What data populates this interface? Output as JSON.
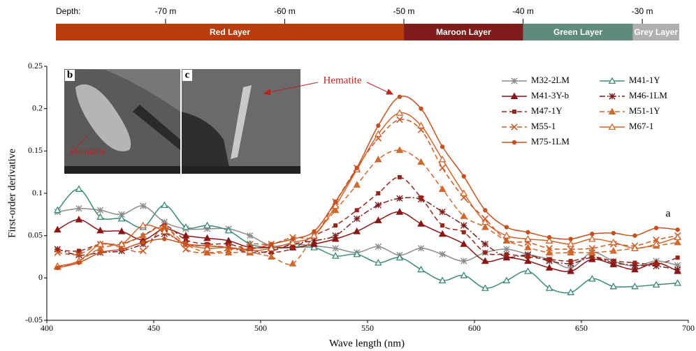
{
  "depth_scale": {
    "label": "Depth:",
    "xlim": [
      -79.2,
      -26.9
    ],
    "ticks": [
      {
        "value": -70,
        "label": "-70 m"
      },
      {
        "value": -60,
        "label": "-60 m"
      },
      {
        "value": -50,
        "label": "-50 m"
      },
      {
        "value": -40,
        "label": "-40 m"
      },
      {
        "value": -30,
        "label": "-30 m"
      }
    ],
    "layers": [
      {
        "name": "Red Layer",
        "from": -79.2,
        "to": -50,
        "color": "#b83c0c"
      },
      {
        "name": "Maroon Layer",
        "from": -50,
        "to": -40,
        "color": "#7f1d1d"
      },
      {
        "name": "Green Layer",
        "from": -40,
        "to": -30.8,
        "color": "#5f8a7e"
      },
      {
        "name": "Grey Layer",
        "from": -30.8,
        "to": -26.9,
        "color": "#b0b0b0"
      }
    ]
  },
  "chart_data": {
    "type": "line",
    "xlabel": "Wave length (nm)",
    "ylabel": "First-order derivative",
    "x": [
      405,
      415,
      425,
      435,
      445,
      455,
      465,
      475,
      485,
      495,
      505,
      515,
      525,
      535,
      545,
      555,
      565,
      575,
      585,
      595,
      605,
      615,
      625,
      635,
      645,
      655,
      665,
      675,
      685,
      695
    ],
    "xlim": [
      400,
      700
    ],
    "xticks": [
      400,
      450,
      500,
      550,
      600,
      650,
      700
    ],
    "ylim": [
      -0.05,
      0.25
    ],
    "yticks": [
      -0.05,
      0,
      0.05,
      0.1,
      0.15,
      0.2,
      0.25
    ],
    "series": [
      {
        "name": "M32-2LM",
        "color": "#8c8c8c",
        "dash": "solid",
        "marker": "star",
        "values": [
          0.078,
          0.082,
          0.08,
          0.075,
          0.085,
          0.066,
          0.058,
          0.058,
          0.058,
          0.05,
          0.038,
          0.04,
          0.038,
          0.035,
          0.03,
          0.037,
          0.027,
          0.035,
          0.028,
          0.02,
          0.03,
          0.034,
          0.028,
          0.022,
          0.012,
          0.03,
          0.02,
          0.014,
          0.02,
          0.015
        ]
      },
      {
        "name": "M41-1Y",
        "color": "#3a8a78",
        "dash": "solid",
        "marker": "triangle-open",
        "values": [
          0.08,
          0.105,
          0.072,
          0.07,
          0.06,
          0.086,
          0.06,
          0.062,
          0.056,
          0.04,
          0.036,
          0.036,
          0.036,
          0.026,
          0.028,
          0.018,
          0.024,
          0.01,
          -0.003,
          0.003,
          -0.012,
          -0.003,
          0.008,
          -0.012,
          -0.017,
          -0.001,
          -0.01,
          -0.01,
          -0.008,
          -0.006
        ]
      },
      {
        "name": "M41-3Y-b",
        "color": "#8b1414",
        "dash": "solid",
        "marker": "triangle",
        "values": [
          0.057,
          0.069,
          0.056,
          0.055,
          0.045,
          0.058,
          0.05,
          0.047,
          0.044,
          0.036,
          0.036,
          0.036,
          0.04,
          0.046,
          0.055,
          0.068,
          0.078,
          0.064,
          0.052,
          0.04,
          0.02,
          0.024,
          0.02,
          0.012,
          0.008,
          0.022,
          0.016,
          0.01,
          0.018,
          0.008
        ]
      },
      {
        "name": "M46-1LM",
        "color": "#7a1c1c",
        "dash": "dashdot",
        "marker": "star",
        "values": [
          0.034,
          0.027,
          0.03,
          0.032,
          0.04,
          0.052,
          0.04,
          0.038,
          0.036,
          0.03,
          0.032,
          0.04,
          0.044,
          0.05,
          0.07,
          0.086,
          0.094,
          0.093,
          0.078,
          0.062,
          0.04,
          0.025,
          0.027,
          0.02,
          0.017,
          0.024,
          0.018,
          0.015,
          0.014,
          0.01
        ]
      },
      {
        "name": "M47-1Y",
        "color": "#9a2418",
        "dash": "dashed",
        "marker": "square",
        "values": [
          0.033,
          0.032,
          0.04,
          0.04,
          0.05,
          0.062,
          0.045,
          0.04,
          0.04,
          0.033,
          0.03,
          0.035,
          0.05,
          0.062,
          0.08,
          0.1,
          0.119,
          0.095,
          0.062,
          0.054,
          0.03,
          0.028,
          0.025,
          0.022,
          0.02,
          0.025,
          0.02,
          0.018,
          0.016,
          0.024
        ]
      },
      {
        "name": "M51-1Y",
        "color": "#d0692c",
        "dash": "dashed",
        "marker": "triangle",
        "values": [
          0.013,
          0.02,
          0.035,
          0.04,
          0.05,
          0.06,
          0.04,
          0.03,
          0.03,
          0.03,
          0.025,
          0.017,
          0.05,
          0.08,
          0.11,
          0.14,
          0.151,
          0.137,
          0.105,
          0.073,
          0.06,
          0.044,
          0.036,
          0.03,
          0.03,
          0.03,
          0.032,
          0.035,
          0.038,
          0.042
        ]
      },
      {
        "name": "M55-1",
        "color": "#cc5a24",
        "dash": "dashed",
        "marker": "x",
        "values": [
          0.03,
          0.028,
          0.04,
          0.036,
          0.032,
          0.06,
          0.034,
          0.03,
          0.033,
          0.04,
          0.04,
          0.048,
          0.05,
          0.09,
          0.13,
          0.165,
          0.187,
          0.175,
          0.13,
          0.095,
          0.07,
          0.045,
          0.042,
          0.035,
          0.034,
          0.035,
          0.04,
          0.038,
          0.045,
          0.05
        ]
      },
      {
        "name": "M67-1",
        "color": "#d4642a",
        "dash": "solid",
        "marker": "triangle-open",
        "values": [
          0.014,
          0.02,
          0.04,
          0.04,
          0.062,
          0.055,
          0.04,
          0.035,
          0.036,
          0.032,
          0.035,
          0.042,
          0.05,
          0.085,
          0.128,
          0.17,
          0.195,
          0.18,
          0.14,
          0.1,
          0.066,
          0.05,
          0.046,
          0.044,
          0.04,
          0.046,
          0.042,
          0.035,
          0.04,
          0.048
        ]
      },
      {
        "name": "M75-1LM",
        "color": "#c8501e",
        "dash": "solid",
        "marker": "circle",
        "values": [
          0.012,
          0.018,
          0.03,
          0.034,
          0.042,
          0.046,
          0.04,
          0.038,
          0.036,
          0.034,
          0.04,
          0.046,
          0.055,
          0.09,
          0.13,
          0.18,
          0.214,
          0.2,
          0.155,
          0.12,
          0.08,
          0.06,
          0.054,
          0.048,
          0.046,
          0.052,
          0.053,
          0.05,
          0.059,
          0.057
        ]
      }
    ],
    "annotations": [
      "a",
      "Hematite"
    ],
    "insets": [
      {
        "label": "b",
        "annotation": "Hematite"
      },
      {
        "label": "c"
      }
    ]
  }
}
